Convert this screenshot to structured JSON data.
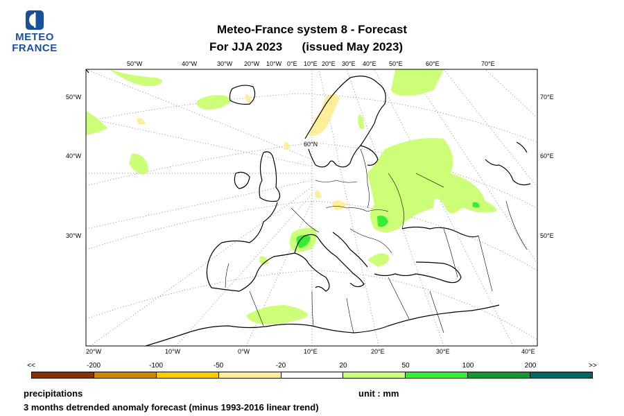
{
  "logo": {
    "line1": "METEO",
    "line2": "FRANCE",
    "color": "#1a4f9c"
  },
  "title": {
    "line1": "Meteo-France system 8  -  Forecast",
    "line2": "For JJA 2023      (issued May 2023)"
  },
  "map": {
    "top_ticks": [
      "50°W",
      "40°W",
      "30°W",
      "20°W",
      "10°W",
      "0°E",
      "10°E",
      "20°E",
      "30°E",
      "40°E",
      "50°E",
      "60°E",
      "70°E"
    ],
    "bottom_ticks": [
      "20°W",
      "10°W",
      "0°W",
      "10°E",
      "20°E",
      "30°E",
      "40°E"
    ],
    "left_ticks": [
      "50°W",
      "40°W",
      "30°W"
    ],
    "right_ticks": [
      "70°E",
      "60°E",
      "50°E"
    ],
    "inner_label": "60°N"
  },
  "legend": {
    "labels": [
      "<<",
      "-200",
      "-100",
      "-50",
      "-20",
      "20",
      "50",
      "100",
      "200",
      ">>"
    ],
    "colors": [
      "#8b3300",
      "#cc8800",
      "#ffcc00",
      "#ffee99",
      "#ffffff",
      "#ccff77",
      "#33ee33",
      "#119933",
      "#006666"
    ]
  },
  "footer": {
    "variable": "precipitations",
    "unit": "unit : mm",
    "description": "3 months detrended anomaly forecast (minus 1993-2016 linear trend)"
  }
}
